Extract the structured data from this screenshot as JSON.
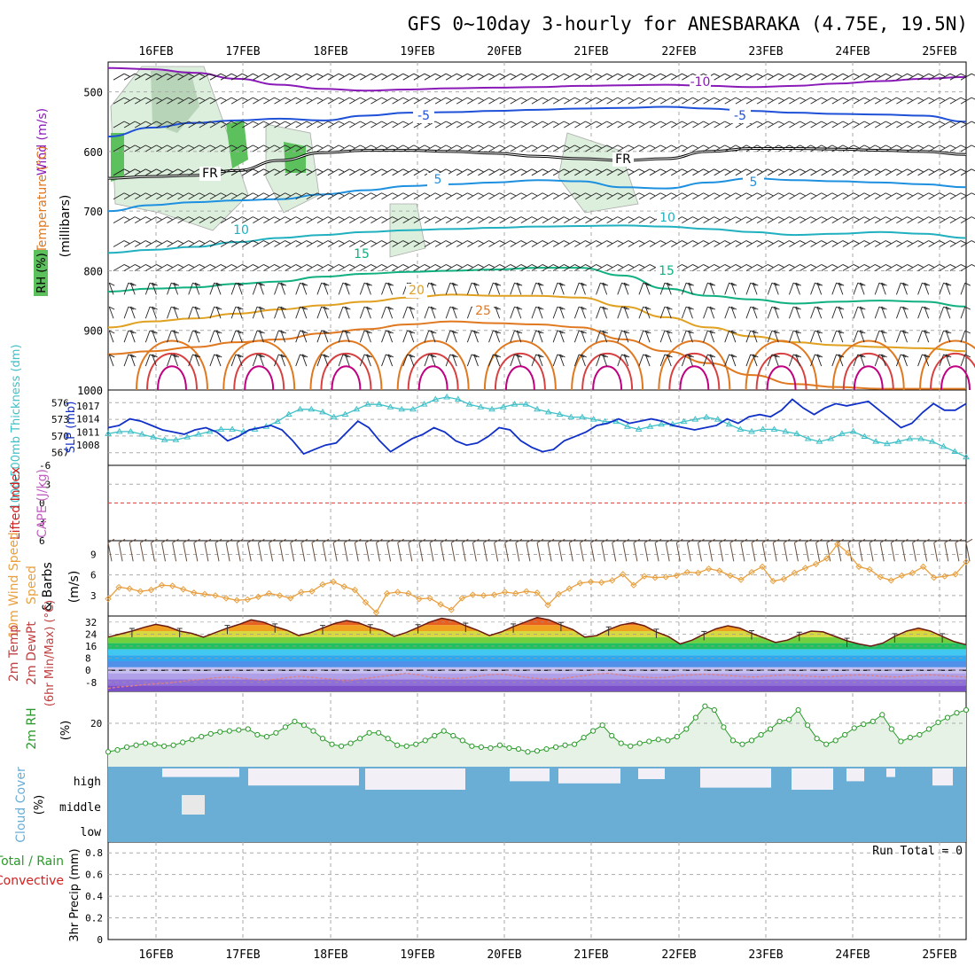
{
  "title": "GFS 0~10day 3-hourly for ANESBARAKA (4.75E, 19.5N)",
  "colors": {
    "frame": "#000000",
    "grid": "#aaaaaa",
    "thickness": "#40c0c8",
    "slp": "#1030c8",
    "wind_speed": "#e8a040",
    "barb": "#6a5040",
    "rh": "#2a9a2a",
    "rh_fill": "#e6f2e6",
    "cloud": "#6aaed6",
    "cloud_gap": "#f2eff6",
    "run_total": "#000000"
  },
  "chart_data": [
    {
      "panel": "upper-air",
      "type": "contour",
      "ylabel_parts": [
        "Wind (m/s)",
        "Temperature (°C)",
        "RH (%)"
      ],
      "yunit": "(millibars)",
      "yticks": [
        "500",
        "600",
        "700",
        "800",
        "900",
        "1000"
      ],
      "ylim": [
        450,
        1000
      ],
      "x": [
        "16FEB",
        "17FEB",
        "18FEB",
        "19FEB",
        "20FEB",
        "21FEB",
        "22FEB",
        "23FEB",
        "24FEB",
        "25FEB"
      ],
      "isotherm_labels": [
        {
          "text": "-10",
          "color": "#8a1ab8"
        },
        {
          "text": "-5",
          "color": "#1e50d8"
        },
        {
          "text": "FR",
          "color": "#000000"
        },
        {
          "text": "5",
          "color": "#1e90e0"
        },
        {
          "text": "10",
          "color": "#20b0c0"
        },
        {
          "text": "15",
          "color": "#10b080"
        },
        {
          "text": "20",
          "color": "#e0a020"
        },
        {
          "text": "25",
          "color": "#e07820"
        }
      ],
      "isotherms": [
        {
          "label": "-10",
          "color": "#8a1ab8",
          "levels": [
            460,
            462,
            468,
            478,
            488,
            495,
            498,
            496,
            494,
            493,
            492,
            490,
            489,
            488,
            490,
            492,
            490,
            486,
            482,
            478,
            475
          ]
        },
        {
          "label": "-5",
          "color": "#1e50d8",
          "levels": [
            575,
            560,
            552,
            548,
            545,
            548,
            540,
            535,
            534,
            532,
            530,
            528,
            527,
            525,
            528,
            532,
            535,
            537,
            538,
            540,
            550
          ]
        },
        {
          "label": "FR",
          "color": "#000000",
          "levels": [
            645,
            642,
            640,
            632,
            615,
            602,
            598,
            598,
            600,
            603,
            608,
            612,
            615,
            612,
            600,
            595,
            595,
            596,
            598,
            600,
            605
          ]
        },
        {
          "label": "5",
          "color": "#1e90e0",
          "levels": [
            700,
            690,
            685,
            682,
            680,
            672,
            665,
            658,
            655,
            652,
            648,
            650,
            660,
            662,
            652,
            645,
            648,
            650,
            652,
            655,
            660
          ]
        },
        {
          "label": "10",
          "color": "#20b0c0",
          "levels": [
            770,
            765,
            760,
            752,
            745,
            740,
            735,
            732,
            730,
            728,
            726,
            725,
            724,
            726,
            730,
            735,
            740,
            738,
            735,
            738,
            745
          ]
        },
        {
          "label": "15",
          "color": "#10b080",
          "levels": [
            835,
            830,
            828,
            822,
            818,
            810,
            805,
            802,
            800,
            798,
            795,
            795,
            808,
            830,
            842,
            848,
            855,
            852,
            850,
            852,
            860
          ]
        },
        {
          "label": "20",
          "color": "#e0a020",
          "levels": [
            895,
            885,
            880,
            872,
            865,
            858,
            852,
            845,
            840,
            842,
            842,
            845,
            860,
            878,
            895,
            910,
            920,
            925,
            928,
            930,
            935
          ]
        },
        {
          "label": "25",
          "color": "#e07820",
          "levels": [
            940,
            935,
            928,
            920,
            915,
            905,
            898,
            890,
            885,
            888,
            890,
            895,
            915,
            935,
            955,
            975,
            990,
            995,
            998,
            998,
            998
          ]
        }
      ]
    },
    {
      "panel": "thickness-slp",
      "type": "line",
      "ylabel_left": "1000-500mb Thickness (dm)",
      "ylabel_right": "SLP (mb)",
      "thickness_ticks": [
        "567",
        "570",
        "573",
        "576"
      ],
      "slp_ticks": [
        "1008",
        "1011",
        "1014",
        "1017"
      ],
      "series": [
        {
          "name": "1000-500mb Thickness (dm)",
          "axis": "thickness",
          "color": "#40c0c8",
          "values": [
            570.4,
            570.8,
            570.8,
            570.3,
            569.8,
            569.3,
            569.3,
            569.8,
            570.3,
            570.8,
            571.2,
            571.2,
            570.8,
            571.2,
            571.7,
            572.6,
            573.9,
            574.8,
            574.8,
            574.3,
            573.4,
            573.9,
            574.8,
            575.7,
            575.7,
            575.2,
            574.8,
            574.8,
            575.7,
            576.6,
            577.0,
            576.6,
            575.7,
            575.2,
            574.8,
            575.2,
            575.7,
            575.7,
            574.8,
            574.3,
            573.9,
            573.4,
            573.4,
            573.0,
            572.6,
            572.6,
            571.7,
            571.2,
            571.7,
            572.1,
            572.1,
            572.6,
            573.0,
            573.4,
            573.0,
            572.1,
            571.2,
            570.8,
            571.2,
            571.2,
            570.8,
            570.4,
            569.5,
            569.0,
            569.5,
            570.4,
            570.8,
            569.9,
            569.0,
            568.6,
            569.0,
            569.5,
            569.5,
            569.0,
            568.1,
            567.2,
            566.2
          ]
        },
        {
          "name": "SLP (mb)",
          "axis": "slp",
          "color": "#1030c8",
          "values": [
            1012,
            1012.5,
            1014,
            1013.5,
            1012.5,
            1011.5,
            1011,
            1010.5,
            1011.5,
            1012,
            1011,
            1009,
            1010,
            1011.5,
            1012,
            1012.5,
            1011.5,
            1009,
            1006,
            1007,
            1008,
            1008.5,
            1011,
            1013.5,
            1012,
            1009,
            1006.5,
            1008,
            1009.5,
            1010.5,
            1012,
            1011,
            1009,
            1008,
            1008.5,
            1010,
            1012,
            1011.5,
            1009,
            1007.5,
            1006.5,
            1007,
            1009,
            1010,
            1011,
            1012.5,
            1013,
            1014,
            1013,
            1013.5,
            1014,
            1013.5,
            1012.5,
            1012,
            1011.5,
            1012,
            1012.5,
            1014,
            1013,
            1014.5,
            1015,
            1014.5,
            1016,
            1018.5,
            1016.5,
            1015,
            1016.5,
            1017.5,
            1017,
            1017.5,
            1018,
            1016,
            1014,
            1012,
            1013,
            1015.5,
            1017.5,
            1016,
            1016,
            1017.5
          ]
        }
      ]
    },
    {
      "panel": "stability",
      "type": "line",
      "ylabel_parts": [
        "Lifted Index",
        "CAPE (J/kg)"
      ],
      "yticks": [
        "-6",
        "-3",
        "0",
        "3",
        "6"
      ],
      "ylim": [
        -6,
        6
      ],
      "series": [
        {
          "name": "Lifted Index",
          "color": "#d02020",
          "values": []
        }
      ]
    },
    {
      "panel": "surface-wind",
      "type": "line",
      "ylabel_parts": [
        "10m Wind Speed",
        "& Barbs",
        "(m/s)"
      ],
      "yticks": [
        "3",
        "6",
        "9"
      ],
      "ylim": [
        0,
        11
      ],
      "series": [
        {
          "name": "10m Wind Speed",
          "color": "#e8a040",
          "values": [
            2.5,
            4.2,
            4.0,
            3.6,
            3.8,
            4.5,
            4.4,
            3.9,
            3.4,
            3.2,
            3.0,
            2.6,
            2.3,
            2.4,
            2.8,
            3.3,
            3.0,
            2.6,
            3.5,
            3.6,
            4.6,
            5.0,
            4.3,
            3.8,
            2.0,
            0.5,
            3.3,
            3.5,
            3.3,
            2.5,
            2.6,
            1.7,
            0.9,
            2.6,
            3.1,
            3.0,
            3.1,
            3.5,
            3.3,
            3.6,
            3.4,
            1.6,
            3.2,
            4.0,
            4.8,
            5.0,
            4.9,
            5.2,
            6.1,
            4.5,
            5.8,
            5.6,
            5.7,
            5.9,
            6.4,
            6.3,
            6.9,
            6.6,
            5.9,
            5.3,
            6.4,
            7.2,
            5.1,
            5.4,
            6.3,
            7.0,
            7.6,
            8.4,
            10.5,
            9.2,
            7.2,
            6.8,
            5.7,
            5.2,
            5.9,
            6.3,
            7.2,
            5.6,
            5.8,
            6.1,
            7.9
          ]
        }
      ]
    },
    {
      "panel": "temperature",
      "type": "area",
      "ylabel_parts": [
        "2m Temp",
        "2m DewPt",
        "(6hr Min/Max) (°C)"
      ],
      "yticks": [
        "-8",
        "0",
        "8",
        "16",
        "24",
        "32"
      ],
      "ylim": [
        -14,
        36
      ],
      "series": [
        {
          "name": "2m Temp",
          "color": "#6a1a10",
          "values": [
            22.0,
            24.0,
            26.0,
            28.5,
            30.5,
            29.0,
            26.0,
            24.5,
            22.0,
            25.0,
            28.0,
            30.5,
            33.5,
            32.0,
            29.0,
            26.5,
            23.0,
            25.0,
            28.0,
            31.0,
            33.0,
            31.5,
            28.5,
            26.5,
            22.5,
            25.0,
            28.5,
            32.0,
            34.5,
            33.0,
            29.5,
            26.5,
            23.0,
            25.5,
            29.0,
            32.0,
            35.0,
            33.5,
            30.0,
            27.0,
            22.0,
            23.0,
            27.0,
            30.0,
            31.5,
            29.5,
            25.5,
            22.5,
            17.5,
            20.0,
            24.0,
            27.5,
            29.5,
            28.0,
            24.5,
            21.5,
            18.5,
            20.0,
            23.5,
            26.0,
            25.5,
            22.5,
            19.5,
            17.5,
            16.0,
            18.0,
            22.5,
            26.0,
            28.0,
            26.0,
            22.5,
            19.0,
            17.0
          ]
        },
        {
          "name": "2m DewPt",
          "color": "#e08080",
          "values": [
            -12.0,
            -11.0,
            -10.5,
            -9.5,
            -9.0,
            -8.5,
            -7.5,
            -6.5,
            -6.0,
            -5.0,
            -4.5,
            -5.0,
            -6.0,
            -6.5,
            -6.0,
            -5.0,
            -4.0,
            -4.5,
            -5.5,
            -6.0,
            -7.0,
            -6.0,
            -5.0,
            -4.0,
            -3.0,
            -2.0,
            -3.0,
            -4.5,
            -5.0,
            -5.5,
            -5.0,
            -4.0,
            -3.0,
            -2.5,
            -3.5,
            -4.5,
            -5.5,
            -6.0,
            -5.5,
            -4.5,
            -3.5,
            -2.5,
            -2.0,
            -3.0,
            -4.0,
            -4.5,
            -5.0,
            -4.5,
            -3.5,
            -3.0,
            -2.5,
            -3.0,
            -3.5,
            -4.0,
            -4.5,
            -4.0,
            -3.5,
            -3.0,
            -3.5,
            -4.0,
            -4.5,
            -4.0,
            -3.5,
            -3.0,
            -3.5,
            -4.0,
            -4.5,
            -4.0,
            -3.5,
            -3.0,
            -3.5,
            -4.0,
            -4.5
          ]
        }
      ]
    },
    {
      "panel": "humidity",
      "type": "area",
      "ylabel_parts": [
        "2m RH",
        "(%)"
      ],
      "yticks": [
        "20"
      ],
      "ylim": [
        0,
        34
      ],
      "series": [
        {
          "name": "2m RH",
          "color": "#2a9a2a",
          "values": [
            5.0,
            6.0,
            7.5,
            8.5,
            9.5,
            9.0,
            8.0,
            8.5,
            10.0,
            11.5,
            13.0,
            14.5,
            15.5,
            16.0,
            16.5,
            17.0,
            14.0,
            13.0,
            15.0,
            18.0,
            21.0,
            19.0,
            16.0,
            12.0,
            9.0,
            8.0,
            9.5,
            12.0,
            15.0,
            15.0,
            12.0,
            8.5,
            8.0,
            9.0,
            11.0,
            13.5,
            16.0,
            13.5,
            11.0,
            8.0,
            7.5,
            7.0,
            8.5,
            7.0,
            6.5,
            5.0,
            5.5,
            6.5,
            7.5,
            8.5,
            9.0,
            12.5,
            16.0,
            19.0,
            13.5,
            9.5,
            8.0,
            9.5,
            10.5,
            11.5,
            11.0,
            13.0,
            17.0,
            23.0,
            29.0,
            27.0,
            18.0,
            11.0,
            9.0,
            11.0,
            14.0,
            17.0,
            21.0,
            22.0,
            27.0,
            19.0,
            12.0,
            9.0,
            11.0,
            14.0,
            17.5,
            19.5,
            21.0,
            24.5,
            17.0,
            10.5,
            12.5,
            14.0,
            17.0,
            20.5,
            23.0,
            25.5,
            27.0
          ]
        }
      ]
    },
    {
      "panel": "cloud-cover",
      "type": "bar",
      "ylabel_parts": [
        "Cloud Cover",
        "(%)"
      ],
      "layers": [
        "high",
        "middle",
        "low"
      ],
      "ylim": [
        0,
        100
      ]
    },
    {
      "panel": "precipitation",
      "type": "bar",
      "ylabel_parts": [
        "Total / Rain",
        "Convective",
        "3hr Precip (mm)"
      ],
      "yticks": [
        "0",
        "0.2",
        "0.4",
        "0.6",
        "0.8"
      ],
      "ylim": [
        0,
        0.9
      ],
      "run_total": "Run Total = 0",
      "values": []
    }
  ]
}
